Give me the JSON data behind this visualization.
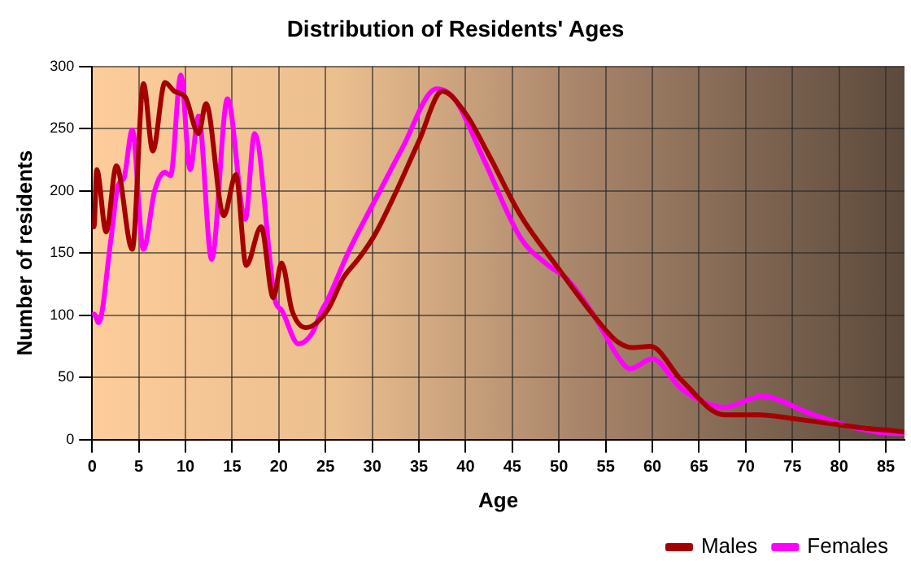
{
  "chart_data": {
    "type": "line",
    "title": "Distribution of Residents' Ages",
    "xlabel": "Age",
    "ylabel": "Number of residents",
    "xlim": [
      0,
      87
    ],
    "xticks": [
      0,
      5,
      10,
      15,
      20,
      25,
      30,
      35,
      40,
      45,
      50,
      55,
      60,
      65,
      70,
      75,
      80,
      85
    ],
    "ylim": [
      0,
      300
    ],
    "yticks": [
      0,
      50,
      100,
      150,
      200,
      250,
      300
    ],
    "grid": true,
    "legend": "bottom right",
    "marker": "none",
    "line_style": "solid",
    "series": [
      {
        "name": "Males",
        "color": "#a50000",
        "x": [
          0,
          0.2,
          0.5,
          1.5,
          2.6,
          4.3,
          5.5,
          6.5,
          7.8,
          8.8,
          10,
          11.4,
          12.2,
          14.1,
          15.4,
          16.5,
          18.1,
          19.4,
          20.3,
          21.4,
          22.9,
          25.2,
          26.9,
          28.6,
          30.3,
          32.6,
          35,
          37.5,
          40,
          42.4,
          45.9,
          49.7,
          53.9,
          56.2,
          57.9,
          59.8,
          63.1,
          67.7,
          71.5,
          75,
          79,
          83,
          86,
          87
        ],
        "values": [
          175,
          171,
          217,
          167,
          220,
          153,
          286,
          232,
          287,
          280,
          275,
          246,
          270,
          180,
          213,
          140,
          171,
          114,
          142,
          104,
          90,
          104,
          130,
          146,
          165,
          200,
          240,
          280,
          262,
          230,
          180,
          140,
          98,
          79,
          74,
          75,
          48,
          20,
          20,
          17,
          13,
          9,
          7,
          6
        ]
      },
      {
        "name": "Females",
        "color": "#ff00ff",
        "x": [
          0,
          0.2,
          0.7,
          2,
          2.8,
          3.4,
          4.3,
          5.5,
          6.7,
          7.8,
          8.4,
          9.5,
          10.5,
          11.4,
          12.8,
          14.5,
          16.4,
          17.4,
          19.6,
          20.3,
          22.1,
          23.6,
          24.6,
          25.2,
          27.4,
          30.9,
          33.2,
          36.9,
          38.9,
          41.9,
          45.9,
          48.7,
          51,
          53.9,
          56.2,
          57.6,
          60,
          63.1,
          67.7,
          71.7,
          76.9,
          82,
          86,
          87
        ],
        "values": [
          100,
          101,
          94,
          160,
          205,
          210,
          249,
          153,
          200,
          215,
          212,
          293,
          217,
          260,
          145,
          274,
          177,
          246,
          112,
          104,
          77,
          86,
          104,
          112,
          150,
          201,
          234,
          282,
          273,
          226,
          162,
          141,
          128,
          98,
          68,
          57,
          65,
          41,
          26,
          35,
          21,
          9,
          5,
          5
        ]
      }
    ]
  }
}
